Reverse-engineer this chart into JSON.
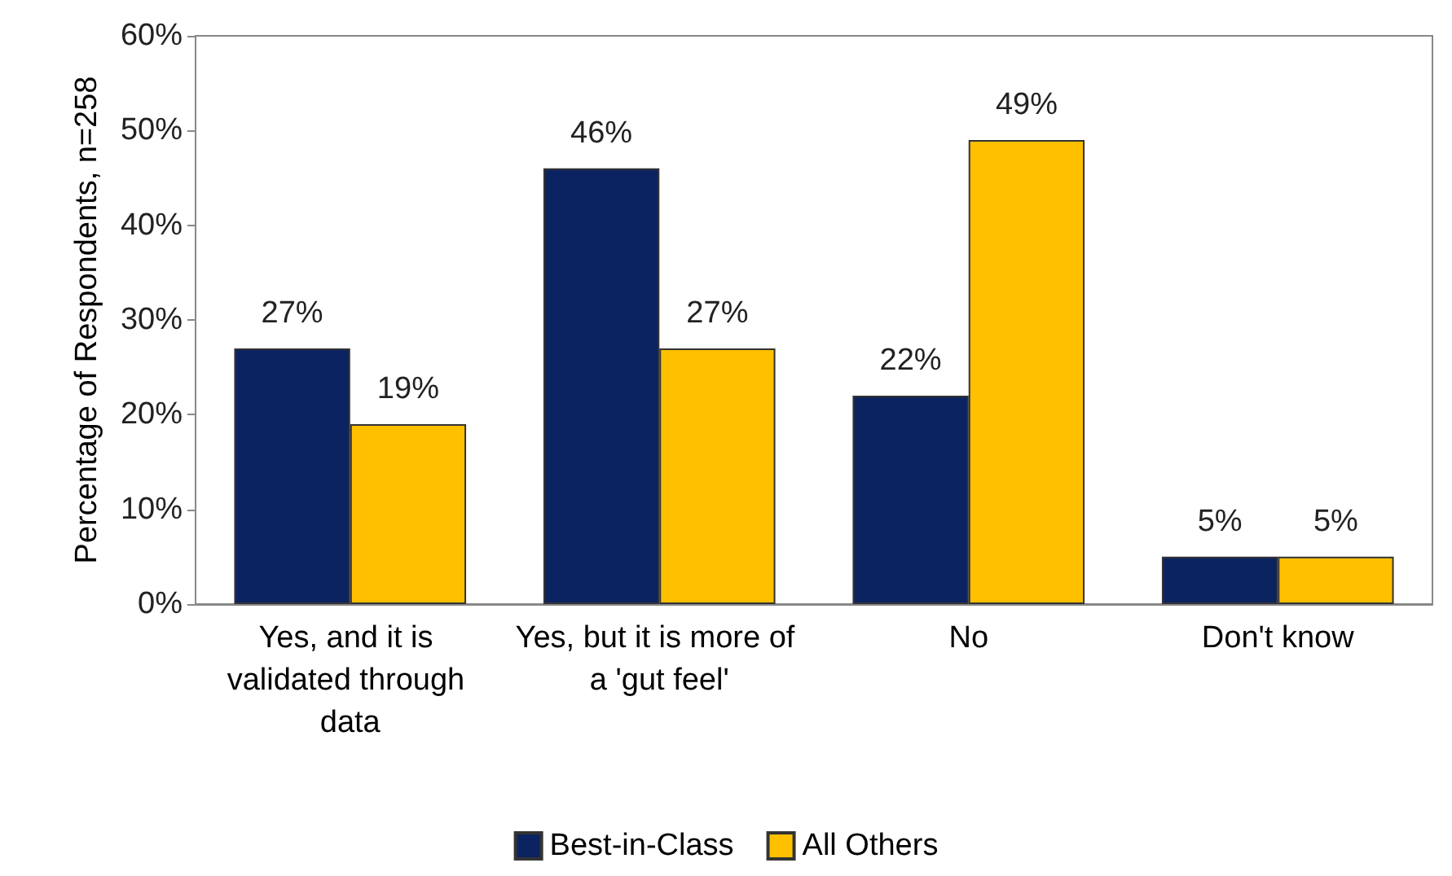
{
  "chart_data": {
    "type": "bar",
    "ylabel": "Percentage of Respondents, n=258",
    "categories": [
      "Yes, and it is validated through data",
      "Yes, but it is more of a 'gut feel'",
      "No",
      "Don't know"
    ],
    "series": [
      {
        "name": "Best-in-Class",
        "color": "#0c2361",
        "values": [
          27,
          46,
          22,
          5
        ],
        "value_labels": [
          "27%",
          "46%",
          "22%",
          "5%"
        ]
      },
      {
        "name": "All Others",
        "color": "#ffc000",
        "values": [
          19,
          27,
          49,
          5
        ],
        "value_labels": [
          "19%",
          "27%",
          "49%",
          "5%"
        ]
      }
    ],
    "ylim": [
      0,
      60
    ],
    "yticks": [
      {
        "value": 0,
        "label": "0%"
      },
      {
        "value": 10,
        "label": "10%"
      },
      {
        "value": 20,
        "label": "20%"
      },
      {
        "value": 30,
        "label": "30%"
      },
      {
        "value": 40,
        "label": "40%"
      },
      {
        "value": 50,
        "label": "50%"
      },
      {
        "value": 60,
        "label": "60%"
      }
    ],
    "grid": false,
    "legend": "bottom"
  }
}
